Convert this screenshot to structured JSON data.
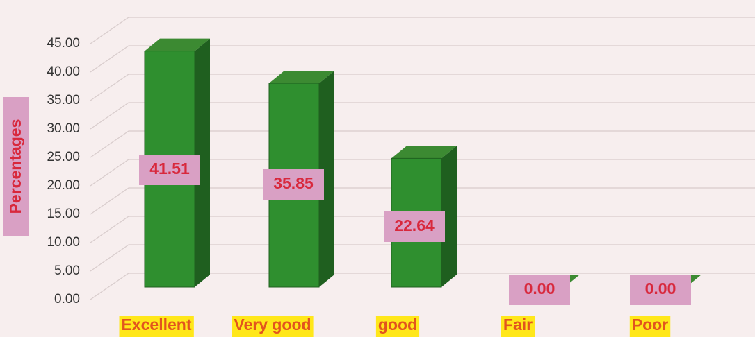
{
  "chart_data": {
    "type": "bar3d",
    "y_label": "Percentages",
    "categories": [
      "Excellent",
      "Very good",
      "good",
      "Fair",
      "Poor"
    ],
    "values": [
      41.51,
      35.85,
      22.64,
      0,
      0
    ],
    "value_labels": [
      "41.51",
      "35.85",
      "22.64",
      "0.00",
      "0.00"
    ],
    "color": "#2f8f2f",
    "ylim": [
      0,
      45
    ],
    "yticks": [
      {
        "value": 0,
        "label": "0.00"
      },
      {
        "value": 5,
        "label": "5.00"
      },
      {
        "value": 10,
        "label": "10.00"
      },
      {
        "value": 15,
        "label": "15.00"
      },
      {
        "value": 20,
        "label": "20.00"
      },
      {
        "value": 25,
        "label": "25.00"
      },
      {
        "value": 30,
        "label": "30.00"
      },
      {
        "value": 35,
        "label": "35.00"
      },
      {
        "value": 40,
        "label": "40.00"
      },
      {
        "value": 45,
        "label": "45.00"
      }
    ],
    "grid": true
  }
}
